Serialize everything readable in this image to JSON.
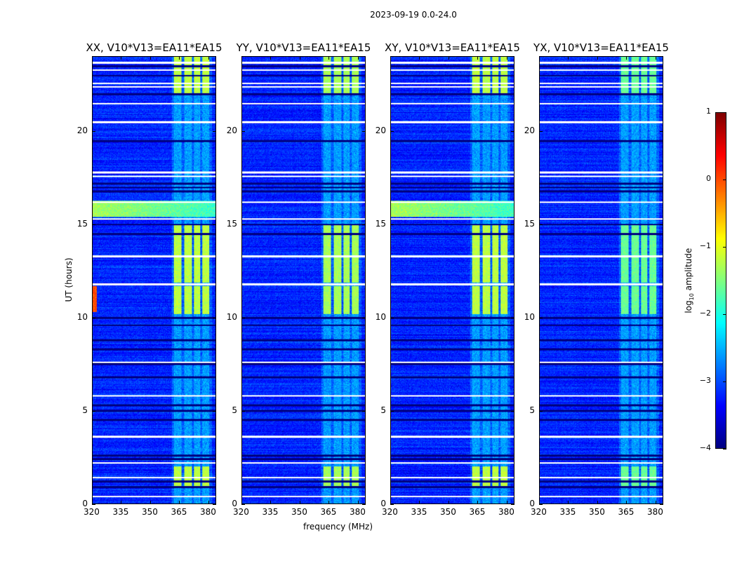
{
  "chart_data": {
    "type": "heatmap",
    "title": "2023-09-19 0.0-24.0",
    "xlabel": "frequency (MHz)",
    "ylabel": "UT (hours)",
    "xlim": [
      320,
      384
    ],
    "ylim": [
      0,
      24
    ],
    "xticks": [
      "320",
      "335",
      "350",
      "365",
      "380"
    ],
    "xtick_values": [
      320,
      335,
      350,
      365,
      380
    ],
    "yticks": [
      "0",
      "5",
      "10",
      "15",
      "20"
    ],
    "ytick_values": [
      0,
      5,
      10,
      15,
      20
    ],
    "panels": [
      {
        "title": "XX, V10*V13=EA11*EA15",
        "band_level": -1.2,
        "left_event": true
      },
      {
        "title": "YY, V10*V13=EA11*EA15",
        "band_level": -1.3,
        "left_event": false
      },
      {
        "title": "XY, V10*V13=EA11*EA15",
        "band_level": -1.2,
        "left_event": true
      },
      {
        "title": "YX, V10*V13=EA11*EA15",
        "band_level": -1.6,
        "left_event": false
      }
    ],
    "background_level": -3.2,
    "rfi_subbands_mhz": [
      [
        362,
        366
      ],
      [
        367.5,
        371.5
      ],
      [
        372.5,
        376
      ],
      [
        377,
        380.5
      ]
    ],
    "rfi_strong_hours": [
      [
        0.9,
        2.0
      ],
      [
        10.2,
        11.7
      ],
      [
        11.9,
        15.0
      ],
      [
        22.0,
        24.0
      ]
    ],
    "flagged_white_hours": [
      0.4,
      1.4,
      2.2,
      3.6,
      5.8,
      7.6,
      11.8,
      13.3,
      15.3,
      16.2,
      17.6,
      17.8,
      20.5,
      21.5,
      22.4,
      22.6,
      23.3,
      23.7
    ],
    "dark_rows_hours": [
      0.9,
      1.2,
      2.4,
      2.6,
      4.5,
      5.0,
      5.3,
      6.8,
      7.5,
      8.3,
      8.8,
      9.6,
      10.0,
      14.5,
      15.0,
      16.8,
      17.0,
      17.2,
      19.5,
      22.0,
      23.0,
      23.5
    ],
    "colorbar": {
      "label": "log10 amplitude",
      "label_main": "log",
      "label_sub": "10",
      "label_rest": " amplitude",
      "range": [
        -4,
        1
      ],
      "ticks": [
        "1",
        "0",
        "−1",
        "−2",
        "−3",
        "−4"
      ],
      "tick_values": [
        1,
        0,
        -1,
        -2,
        -3,
        -4
      ],
      "colormap": "jet"
    }
  }
}
